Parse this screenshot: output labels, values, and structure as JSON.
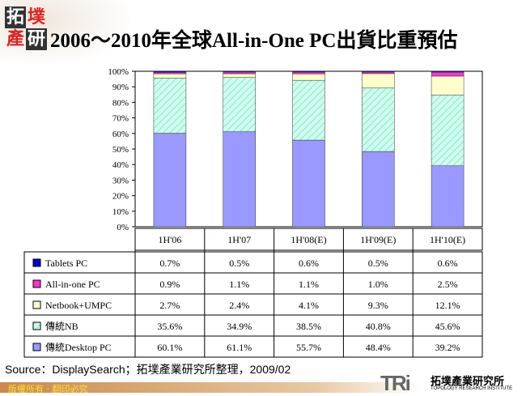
{
  "header": {
    "logo_text": "拓墣產研",
    "title": "2006～2010年全球All-in-One PC出貨比重預估"
  },
  "chart_data": {
    "type": "bar",
    "stacked": true,
    "title": "2006～2010年全球All-in-One PC出貨比重預估",
    "categories": [
      "1H'06",
      "1H'07",
      "1H'08(E)",
      "1H'09(E)",
      "1H'10(E)"
    ],
    "yticks": [
      "0%",
      "10%",
      "20%",
      "30%",
      "40%",
      "50%",
      "60%",
      "70%",
      "80%",
      "90%",
      "100%"
    ],
    "ylim": [
      0,
      100
    ],
    "series": [
      {
        "name": "傳統Desktop PC",
        "color": "#9999ff",
        "values": [
          60.1,
          61.1,
          55.7,
          48.4,
          39.2
        ],
        "labels": [
          "60.1%",
          "61.1%",
          "55.7%",
          "48.4%",
          "39.2%"
        ]
      },
      {
        "name": "傳統NB",
        "color": "#ccffee",
        "values": [
          35.6,
          34.9,
          38.5,
          40.8,
          45.6
        ],
        "labels": [
          "35.6%",
          "34.9%",
          "38.5%",
          "40.8%",
          "45.6%"
        ]
      },
      {
        "name": "Netbook+UMPC",
        "color": "#ffffcc",
        "values": [
          2.7,
          2.4,
          4.1,
          9.3,
          12.1
        ],
        "labels": [
          "2.7%",
          "2.4%",
          "4.1%",
          "9.3%",
          "12.1%"
        ]
      },
      {
        "name": "All-in-one PC",
        "color": "#ff33cc",
        "values": [
          0.9,
          1.1,
          1.1,
          1.0,
          2.5
        ],
        "labels": [
          "0.9%",
          "1.1%",
          "1.1%",
          "1.0%",
          "2.5%"
        ]
      },
      {
        "name": "Tablets PC",
        "color": "#0000cc",
        "values": [
          0.7,
          0.5,
          0.6,
          0.5,
          0.6
        ],
        "labels": [
          "0.7%",
          "0.5%",
          "0.6%",
          "0.5%",
          "0.6%"
        ]
      }
    ]
  },
  "footer": {
    "source": "Source：DisplaySearch；拓墣產業研究所整理，2009/02",
    "copyright": "版權所有 ‧ 翻印必究",
    "brand_mark": "TRi",
    "brand_cn": "拓墣產業研究所",
    "brand_en": "TOPOLOGY RESEARCH INSTITUTE"
  }
}
